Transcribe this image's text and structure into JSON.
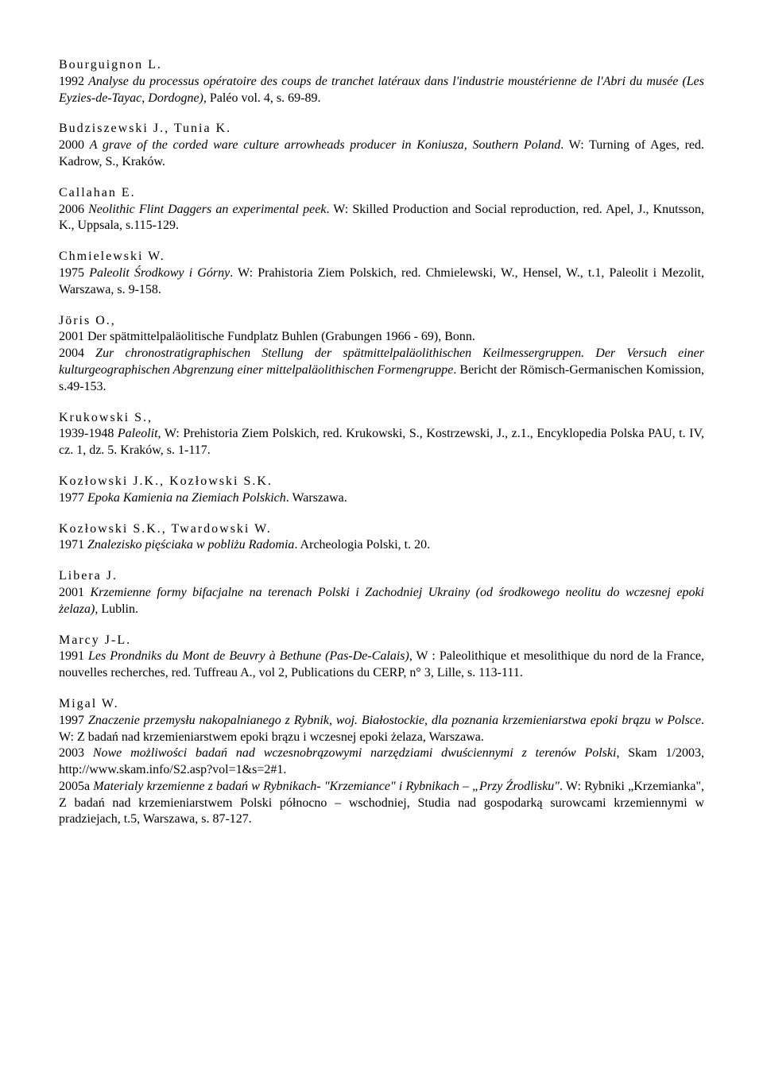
{
  "entries": [
    {
      "author": "Bourguignon L.",
      "body_html": "1992 <i>Analyse du processus opératoire des coups de tranchet latéraux dans l'industrie moustérienne de l'Abri du musée (Les Eyzies-de-Tayac, Dordogne)</i>, Paléo vol. 4, s. 69-89."
    },
    {
      "author": "Budziszewski J., Tunia K.",
      "body_html": "2000 <i>A grave of the corded ware culture arrowheads producer in Koniusza, Southern Poland</i>. W: Turning of Ages, red. Kadrow, S., Kraków."
    },
    {
      "author": "Callahan E.",
      "body_html": "2006 <i>Neolithic Flint Daggers an experimental peek</i>. W: Skilled Production and Social reproduction, red. Apel, J., Knutsson, K., Uppsala, s.115-129."
    },
    {
      "author": "Chmielewski W.",
      "body_html": "1975 <i>Paleolit Środkowy i Górny</i>. W: Prahistoria Ziem Polskich, red. Chmielewski, W., Hensel, W., t.1, Paleolit i Mezolit, Warszawa, s. 9-158."
    },
    {
      "author": "Jöris O.,",
      "body_html": "2001 Der spätmittelpaläolitische Fundplatz Buhlen (Grabungen 1966 - 69), Bonn.<br>2004 <i>Zur chronostratigraphischen Stellung der spätmittelpaläolithischen Keilmessergruppen. Der Versuch einer kulturgeographischen Abgrenzung einer mittelpaläolithischen Formengruppe</i>. Bericht der Römisch-Germanischen Komission, s.49-153."
    },
    {
      "author": "Krukowski S.,",
      "body_html": "1939-1948 <i>Paleolit</i>, W: Prehistoria Ziem Polskich, red. Krukowski, S., Kostrzewski, J., z.1., Encyklopedia Polska PAU, t. IV, cz. 1, dz. 5. Kraków, s. 1-117."
    },
    {
      "author": "Kozłowski J.K., Kozłowski S.K.",
      "body_html": "1977 <i>Epoka Kamienia na Ziemiach Polskich</i>. Warszawa."
    },
    {
      "author": "Kozłowski S.K., Twardowski W.",
      "body_html": "1971 <i>Znalezisko pięściaka w pobliżu Radomia</i>. Archeologia Polski, t. 20."
    },
    {
      "author": "Libera J.",
      "body_html": "2001 <i>Krzemienne formy bifacjalne na terenach Polski i Zachodniej Ukrainy (od środkowego neolitu do wczesnej epoki żelaza)</i>, Lublin."
    },
    {
      "author": "Marcy J-L.",
      "body_html": "1991 <i>Les Prondniks du Mont de Beuvry à Bethune (Pas-De-Calais)</i>, W : Paleolithique et mesolithique du nord de la France, nouvelles recherches, red. Tuffreau A., vol 2, Publications du CERP, n° 3, Lille, s. 113-111."
    },
    {
      "author": "Migal W.",
      "body_html": "1997 <i>Znaczenie przemysłu nakopalnianego z Rybnik, woj. Białostockie, dla poznania krzemieniarstwa epoki brązu w Polsce</i>. W: Z badań nad krzemieniarstwem epoki brązu i wczesnej epoki żelaza, Warszawa.<br>2003 <i>Nowe możliwości badań nad wczesnobrązowymi narzędziami dwuściennymi z terenów Polski</i>, Skam 1/2003, http://www.skam.info/S2.asp?vol=1&s=2#1.<br>2005a <i>Materialy krzemienne z badań w Rybnikach- \"Krzemiance\" i Rybnikach – „Przy Źrodlisku\"</i>. W: Rybniki „Krzemianka\", Z badań nad krzemieniarstwem Polski północno – wschodniej, Studia nad gospodarką surowcami krzemiennymi w pradziejach, t.5, Warszawa, s. 87-127."
    }
  ]
}
